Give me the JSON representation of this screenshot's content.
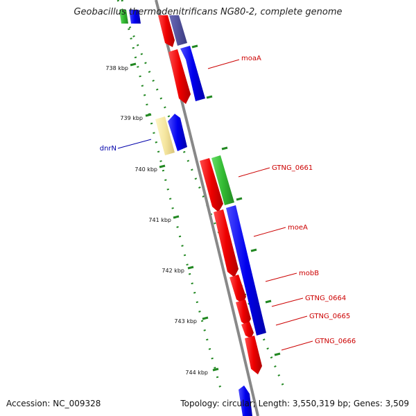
{
  "title": "Geobacillus thermodenitrificans NG80-2, complete genome",
  "footer": {
    "accession": "Accession: NC_009328",
    "stats": "Topology: circular; Length: 3,550,319 bp; Genes: 3,509"
  },
  "colors": {
    "forward_red": "#ff0000",
    "reverse_blue": "#0000ff",
    "rna_green": "#33bb33",
    "pseudo_yellow": "#f5e6a0",
    "backbone": "#888888",
    "tick": "#228822",
    "label_red": "#cc0000",
    "label_blue": "#0000aa"
  },
  "kbp_labels": [
    "738 kbp",
    "739 kbp",
    "740 kbp",
    "741 kbp",
    "742 kbp",
    "743 kbp",
    "744 kbp"
  ],
  "gene_labels": [
    {
      "text": "moaA",
      "color": "red"
    },
    {
      "text": "dnrN",
      "color": "blue"
    },
    {
      "text": "GTNG_0661",
      "color": "red"
    },
    {
      "text": "moeA",
      "color": "red"
    },
    {
      "text": "mobB",
      "color": "red"
    },
    {
      "text": "GTNG_0664",
      "color": "red"
    },
    {
      "text": "GTNG_0665",
      "color": "red"
    },
    {
      "text": "GTNG_0666",
      "color": "red"
    }
  ]
}
